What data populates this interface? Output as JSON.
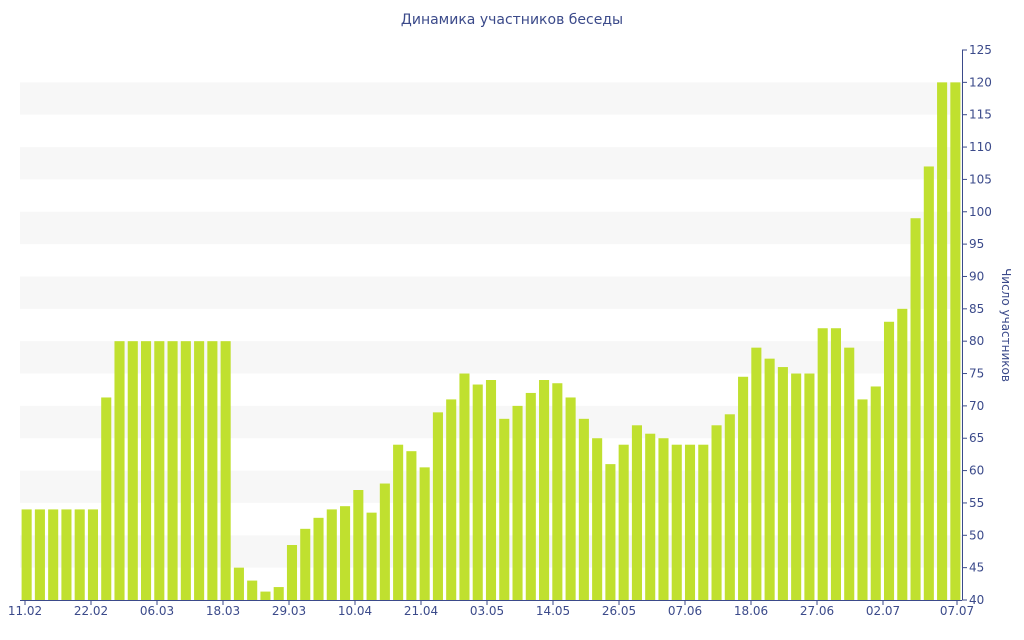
{
  "chart_data": {
    "type": "bar",
    "title": "Динамика участников беседы",
    "xlabel": "",
    "ylabel": "Число участников",
    "ylim": [
      40,
      125
    ],
    "ytick_step": 5,
    "y_axis_position": "right",
    "grid": "alternating horizontal bands",
    "bar_color": "#c0e02f",
    "band_color": "#f7f7f7",
    "text_color": "#3b4a8a",
    "x_tick_labels": [
      "11.02",
      "22.02",
      "06.03",
      "18.03",
      "29.03",
      "10.04",
      "21.04",
      "03.05",
      "14.05",
      "26.05",
      "07.06",
      "18.06",
      "27.06",
      "02.07",
      "07.07"
    ],
    "values": [
      54,
      54,
      54,
      54,
      54,
      54,
      71.3,
      80,
      80,
      80,
      80,
      80,
      80,
      80,
      80,
      80,
      45,
      43,
      41.3,
      42,
      48.5,
      51,
      52.7,
      54,
      54.5,
      57,
      53.5,
      58,
      64,
      63,
      60.5,
      69,
      71,
      75,
      73.3,
      74,
      68,
      70,
      72,
      74,
      73.5,
      71.3,
      68,
      65,
      61,
      64,
      67,
      65.7,
      65,
      64,
      64,
      64,
      67,
      68.7,
      74.5,
      79,
      77.3,
      76,
      75,
      75,
      82,
      82,
      79,
      71,
      73,
      83,
      85,
      99,
      107,
      120,
      120
    ]
  }
}
